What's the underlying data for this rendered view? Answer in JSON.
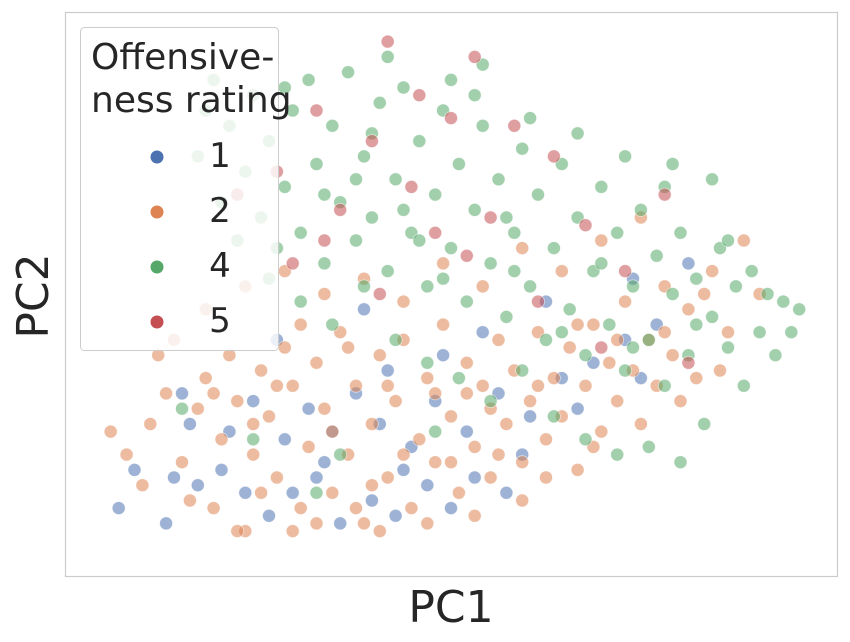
{
  "chart_data": {
    "type": "scatter",
    "title": "",
    "xlabel": "PC1",
    "ylabel": "PC2",
    "xlim": [
      -4.0,
      5.2
    ],
    "ylim": [
      -3.2,
      3.6
    ],
    "grid": false,
    "ticks_visible": false,
    "legend": {
      "title_lines": [
        "Offensive-",
        "ness rating"
      ],
      "placement": "top-left",
      "entries": [
        {
          "label": "1",
          "color": "#4c72b0"
        },
        {
          "label": "2",
          "color": "#dd8452"
        },
        {
          "label": "4",
          "color": "#55a868"
        },
        {
          "label": "5",
          "color": "#c44e52"
        }
      ]
    },
    "point_alpha": 0.55,
    "series": [
      {
        "name": "1",
        "color": "#4c72b0",
        "points": [
          [
            -3.6,
            -2.6
          ],
          [
            -3.0,
            -2.8
          ],
          [
            -3.4,
            -2.1
          ],
          [
            -2.9,
            -2.2
          ],
          [
            -2.6,
            -2.3
          ],
          [
            -2.3,
            -2.1
          ],
          [
            -2.0,
            -2.4
          ],
          [
            -1.7,
            -2.7
          ],
          [
            -1.4,
            -2.4
          ],
          [
            -1.1,
            -2.2
          ],
          [
            -0.8,
            -2.8
          ],
          [
            -0.4,
            -2.5
          ],
          [
            -0.1,
            -2.7
          ],
          [
            0.3,
            -2.3
          ],
          [
            0.6,
            -2.6
          ],
          [
            0.9,
            -2.2
          ],
          [
            1.3,
            -2.4
          ],
          [
            -2.7,
            -1.5
          ],
          [
            -2.2,
            -1.6
          ],
          [
            -1.9,
            -1.2
          ],
          [
            -1.5,
            -1.7
          ],
          [
            -1.2,
            -1.3
          ],
          [
            -0.9,
            -1.6
          ],
          [
            -0.6,
            -1.1
          ],
          [
            -0.3,
            -1.5
          ],
          [
            0.1,
            -1.8
          ],
          [
            0.4,
            -1.2
          ],
          [
            0.8,
            -1.6
          ],
          [
            1.2,
            -1.1
          ],
          [
            1.6,
            -1.4
          ],
          [
            2.0,
            -0.9
          ],
          [
            2.4,
            -0.7
          ],
          [
            2.8,
            -0.4
          ],
          [
            3.2,
            -0.2
          ],
          [
            -0.2,
            -0.8
          ],
          [
            0.5,
            -0.6
          ],
          [
            1.0,
            -0.3
          ],
          [
            1.8,
            0.1
          ],
          [
            2.9,
            0.4
          ],
          [
            3.6,
            0.6
          ],
          [
            -2.8,
            -1.1
          ],
          [
            -1.0,
            -2.0
          ],
          [
            0.0,
            -2.1
          ],
          [
            1.5,
            -1.9
          ],
          [
            2.2,
            -1.3
          ],
          [
            -0.5,
            0.0
          ],
          [
            -1.6,
            -0.4
          ],
          [
            3.0,
            -0.9
          ]
        ]
      },
      {
        "name": "2",
        "color": "#dd8452",
        "points": [
          [
            -3.5,
            -1.9
          ],
          [
            -3.2,
            -1.5
          ],
          [
            -3.0,
            -1.1
          ],
          [
            -2.8,
            -2.0
          ],
          [
            -2.6,
            -1.3
          ],
          [
            -2.5,
            -0.9
          ],
          [
            -2.4,
            -2.6
          ],
          [
            -2.3,
            -1.7
          ],
          [
            -2.2,
            -0.6
          ],
          [
            -2.1,
            -1.2
          ],
          [
            -2.0,
            -2.9
          ],
          [
            -1.9,
            -1.9
          ],
          [
            -1.8,
            -0.8
          ],
          [
            -1.7,
            -1.4
          ],
          [
            -1.6,
            -2.2
          ],
          [
            -1.5,
            -0.5
          ],
          [
            -1.4,
            -1.0
          ],
          [
            -1.3,
            -2.6
          ],
          [
            -1.2,
            -1.8
          ],
          [
            -1.1,
            -0.7
          ],
          [
            -1.0,
            -1.3
          ],
          [
            -0.9,
            -2.4
          ],
          [
            -0.8,
            -0.3
          ],
          [
            -0.7,
            -1.9
          ],
          [
            -0.6,
            -1.0
          ],
          [
            -0.5,
            -2.8
          ],
          [
            -0.4,
            -1.5
          ],
          [
            -0.3,
            -0.6
          ],
          [
            -0.2,
            -2.2
          ],
          [
            -0.1,
            -1.2
          ],
          [
            0.0,
            -0.4
          ],
          [
            0.1,
            -2.6
          ],
          [
            0.2,
            -1.7
          ],
          [
            0.3,
            -0.9
          ],
          [
            0.4,
            -2.0
          ],
          [
            0.5,
            -0.2
          ],
          [
            0.6,
            -1.4
          ],
          [
            0.7,
            -2.4
          ],
          [
            0.8,
            -0.7
          ],
          [
            0.9,
            -1.8
          ],
          [
            1.0,
            -1.0
          ],
          [
            1.1,
            -2.2
          ],
          [
            1.2,
            -0.4
          ],
          [
            1.3,
            -1.5
          ],
          [
            1.4,
            -0.8
          ],
          [
            1.5,
            -2.0
          ],
          [
            1.6,
            -1.2
          ],
          [
            1.7,
            -0.3
          ],
          [
            1.8,
            -1.7
          ],
          [
            1.9,
            -0.9
          ],
          [
            2.0,
            -1.4
          ],
          [
            2.1,
            -0.5
          ],
          [
            2.2,
            -2.1
          ],
          [
            2.3,
            -1.0
          ],
          [
            2.4,
            -0.2
          ],
          [
            2.5,
            -1.6
          ],
          [
            2.6,
            -0.7
          ],
          [
            2.7,
            -1.2
          ],
          [
            2.8,
            0.1
          ],
          [
            2.9,
            -0.8
          ],
          [
            3.0,
            -1.5
          ],
          [
            3.1,
            -0.4
          ],
          [
            3.2,
            -1.0
          ],
          [
            3.3,
            0.3
          ],
          [
            3.4,
            -0.6
          ],
          [
            3.5,
            -1.2
          ],
          [
            3.6,
            0.0
          ],
          [
            3.7,
            -0.9
          ],
          [
            3.9,
            0.5
          ],
          [
            4.1,
            -0.3
          ],
          [
            4.3,
            0.9
          ],
          [
            4.5,
            0.2
          ],
          [
            -3.7,
            -1.6
          ],
          [
            -3.3,
            -2.3
          ],
          [
            -2.9,
            -0.4
          ],
          [
            -2.7,
            -2.5
          ],
          [
            -2.1,
            -2.9
          ],
          [
            -1.8,
            -2.4
          ],
          [
            -1.4,
            -2.9
          ],
          [
            -1.1,
            -2.8
          ],
          [
            -0.9,
            -1.6
          ],
          [
            -0.6,
            -2.6
          ],
          [
            -0.3,
            -2.9
          ],
          [
            0.0,
            -1.9
          ],
          [
            0.3,
            -2.8
          ],
          [
            0.6,
            -2.0
          ],
          [
            0.9,
            -2.7
          ],
          [
            1.2,
            -1.9
          ],
          [
            1.5,
            -2.5
          ],
          [
            1.8,
            -2.2
          ],
          [
            -2.5,
            0.0
          ],
          [
            -2.0,
            0.3
          ],
          [
            -1.5,
            0.5
          ],
          [
            -1.0,
            0.2
          ],
          [
            -0.5,
            0.4
          ],
          [
            0.0,
            0.1
          ],
          [
            0.5,
            0.6
          ],
          [
            1.0,
            0.3
          ],
          [
            1.5,
            0.8
          ],
          [
            2.0,
            0.5
          ],
          [
            2.5,
            0.9
          ],
          [
            3.0,
            1.2
          ],
          [
            -3.1,
            -0.6
          ],
          [
            -2.4,
            -1.1
          ],
          [
            -1.9,
            -1.5
          ],
          [
            -1.3,
            -0.2
          ],
          [
            -0.7,
            -0.5
          ],
          [
            -0.2,
            -1.0
          ],
          [
            0.4,
            -1.1
          ],
          [
            1.1,
            -1.3
          ],
          [
            1.7,
            -1.0
          ],
          [
            2.2,
            -0.2
          ],
          [
            2.7,
            -0.4
          ],
          [
            3.3,
            -0.3
          ],
          [
            3.8,
            0.2
          ],
          [
            4.0,
            -0.8
          ],
          [
            -1.6,
            -1.0
          ],
          [
            -0.4,
            -2.3
          ],
          [
            0.8,
            -1.1
          ],
          [
            2.4,
            -1.8
          ]
        ]
      },
      {
        "name": "4",
        "color": "#55a868",
        "points": [
          [
            -2.4,
            3.0
          ],
          [
            -2.2,
            2.4
          ],
          [
            -2.0,
            1.8
          ],
          [
            -1.9,
            2.8
          ],
          [
            -1.8,
            1.2
          ],
          [
            -1.7,
            2.2
          ],
          [
            -1.6,
            0.8
          ],
          [
            -1.5,
            1.6
          ],
          [
            -1.4,
            2.6
          ],
          [
            -1.3,
            1.0
          ],
          [
            -1.2,
            3.0
          ],
          [
            -1.1,
            1.9
          ],
          [
            -1.0,
            0.6
          ],
          [
            -0.9,
            2.4
          ],
          [
            -0.8,
            1.4
          ],
          [
            -0.7,
            3.1
          ],
          [
            -0.6,
            0.9
          ],
          [
            -0.5,
            2.0
          ],
          [
            -0.4,
            1.2
          ],
          [
            -0.3,
            2.7
          ],
          [
            -0.2,
            0.5
          ],
          [
            -0.1,
            1.7
          ],
          [
            0.0,
            2.9
          ],
          [
            0.1,
            1.0
          ],
          [
            0.2,
            2.2
          ],
          [
            0.3,
            0.3
          ],
          [
            0.4,
            1.5
          ],
          [
            0.5,
            2.6
          ],
          [
            0.6,
            0.8
          ],
          [
            0.7,
            1.9
          ],
          [
            0.8,
            0.1
          ],
          [
            0.9,
            1.3
          ],
          [
            1.0,
            2.4
          ],
          [
            1.1,
            0.6
          ],
          [
            1.2,
            1.7
          ],
          [
            1.3,
            -0.1
          ],
          [
            1.4,
            1.0
          ],
          [
            1.5,
            2.1
          ],
          [
            1.6,
            0.3
          ],
          [
            1.7,
            1.5
          ],
          [
            1.8,
            -0.4
          ],
          [
            1.9,
            0.8
          ],
          [
            2.0,
            1.9
          ],
          [
            2.1,
            0.0
          ],
          [
            2.2,
            1.2
          ],
          [
            2.3,
            -0.6
          ],
          [
            2.4,
            0.5
          ],
          [
            2.5,
            1.6
          ],
          [
            2.6,
            -0.2
          ],
          [
            2.7,
            1.0
          ],
          [
            2.8,
            -0.8
          ],
          [
            2.9,
            0.3
          ],
          [
            3.0,
            1.3
          ],
          [
            3.1,
            -0.4
          ],
          [
            3.2,
            0.7
          ],
          [
            3.3,
            -1.0
          ],
          [
            3.4,
            0.2
          ],
          [
            3.5,
            1.0
          ],
          [
            3.6,
            -0.6
          ],
          [
            3.7,
            0.4
          ],
          [
            3.8,
            -1.5
          ],
          [
            3.9,
            -0.1
          ],
          [
            4.0,
            0.8
          ],
          [
            4.1,
            -0.5
          ],
          [
            4.2,
            0.3
          ],
          [
            4.3,
            -1.0
          ],
          [
            4.4,
            0.5
          ],
          [
            4.5,
            -0.3
          ],
          [
            4.6,
            0.2
          ],
          [
            4.7,
            -0.6
          ],
          [
            4.8,
            0.1
          ],
          [
            4.9,
            -0.3
          ],
          [
            5.0,
            0.0
          ],
          [
            -2.6,
            2.0
          ],
          [
            -2.3,
            1.4
          ],
          [
            -2.1,
            0.9
          ],
          [
            -1.7,
            0.4
          ],
          [
            -1.3,
            0.1
          ],
          [
            -0.9,
            -0.2
          ],
          [
            -0.5,
            0.3
          ],
          [
            -0.1,
            -0.4
          ],
          [
            0.3,
            -0.7
          ],
          [
            0.7,
            -0.9
          ],
          [
            1.1,
            -1.2
          ],
          [
            1.5,
            -0.8
          ],
          [
            1.9,
            -1.4
          ],
          [
            2.3,
            -1.7
          ],
          [
            2.7,
            -1.9
          ],
          [
            3.1,
            -1.8
          ],
          [
            3.5,
            -2.0
          ],
          [
            -1.9,
            -1.7
          ],
          [
            -0.8,
            -1.9
          ],
          [
            0.4,
            -1.6
          ],
          [
            -2.8,
            -1.3
          ],
          [
            -1.1,
            -2.4
          ],
          [
            0.2,
            0.9
          ],
          [
            1.3,
            1.2
          ],
          [
            2.5,
            0.6
          ],
          [
            3.3,
            1.6
          ],
          [
            0.0,
            1.3
          ],
          [
            -0.4,
            2.3
          ],
          [
            0.9,
            2.8
          ],
          [
            1.6,
            2.5
          ],
          [
            2.2,
            2.3
          ],
          [
            2.8,
            2.0
          ],
          [
            3.4,
            1.9
          ],
          [
            3.9,
            1.7
          ],
          [
            -1.0,
            1.5
          ],
          [
            -1.5,
            2.9
          ],
          [
            -0.6,
            1.7
          ],
          [
            0.5,
            0.4
          ],
          [
            1.4,
            0.5
          ],
          [
            2.0,
            -0.3
          ],
          [
            2.9,
            -0.5
          ],
          [
            3.7,
            -0.2
          ],
          [
            4.1,
            0.9
          ],
          [
            -2.5,
            2.6
          ],
          [
            -0.2,
            3.3
          ],
          [
            1.0,
            3.2
          ],
          [
            0.6,
            3.0
          ]
        ]
      },
      {
        "name": "5",
        "color": "#c44e52",
        "points": [
          [
            -0.2,
            3.5
          ],
          [
            0.9,
            3.3
          ],
          [
            -1.1,
            2.6
          ],
          [
            -0.4,
            2.2
          ],
          [
            0.6,
            2.5
          ],
          [
            1.9,
            2.0
          ],
          [
            -1.6,
            1.8
          ],
          [
            -0.8,
            1.3
          ],
          [
            0.1,
            1.6
          ],
          [
            1.1,
            1.2
          ],
          [
            2.3,
            1.1
          ],
          [
            3.3,
            1.5
          ],
          [
            -1.4,
            0.6
          ],
          [
            -0.3,
            0.2
          ],
          [
            0.8,
            0.7
          ],
          [
            1.7,
            0.1
          ],
          [
            2.8,
            0.5
          ],
          [
            3.6,
            -0.7
          ],
          [
            -2.1,
            1.5
          ],
          [
            0.4,
            1.0
          ],
          [
            1.4,
            2.4
          ],
          [
            2.5,
            -0.5
          ],
          [
            -1.0,
            0.9
          ],
          [
            0.2,
            2.8
          ]
        ]
      }
    ]
  }
}
